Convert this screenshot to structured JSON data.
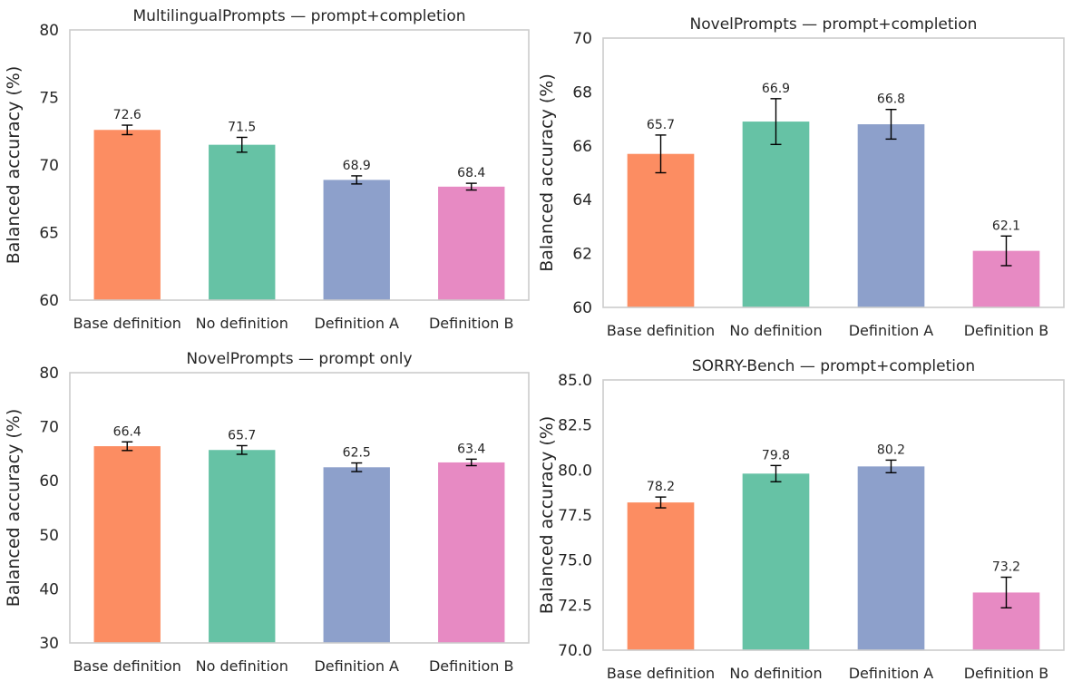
{
  "colors": {
    "Base definition": "#fc8d62",
    "No definition": "#66c2a5",
    "Definition A": "#8da0cb",
    "Definition B": "#e78ac3"
  },
  "chart_data": [
    {
      "type": "bar",
      "title": "MultilingualPrompts — prompt+completion",
      "ylabel": "Balanced accuracy (%)",
      "categories": [
        "Base definition",
        "No definition",
        "Definition A",
        "Definition B"
      ],
      "values": [
        72.6,
        71.5,
        68.9,
        68.4
      ],
      "errors": [
        0.35,
        0.55,
        0.3,
        0.25
      ],
      "value_labels": [
        "72.6",
        "71.5",
        "68.9",
        "68.4"
      ],
      "ylim": [
        60,
        80
      ],
      "yticks": [
        60,
        65,
        70,
        75,
        80
      ],
      "ytick_labels": [
        "60",
        "65",
        "70",
        "75",
        "80"
      ],
      "grid": false
    },
    {
      "type": "bar",
      "title": "NovelPrompts — prompt+completion",
      "ylabel": "Balanced accuracy (%)",
      "categories": [
        "Base definition",
        "No definition",
        "Definition A",
        "Definition B"
      ],
      "values": [
        65.7,
        66.9,
        66.8,
        62.1
      ],
      "errors": [
        0.7,
        0.85,
        0.55,
        0.55
      ],
      "value_labels": [
        "65.7",
        "66.9",
        "66.8",
        "62.1"
      ],
      "ylim": [
        60,
        70
      ],
      "yticks": [
        60,
        62,
        64,
        66,
        68,
        70
      ],
      "ytick_labels": [
        "60",
        "62",
        "64",
        "66",
        "68",
        "70"
      ],
      "grid": false
    },
    {
      "type": "bar",
      "title": "NovelPrompts — prompt only",
      "ylabel": "Balanced accuracy (%)",
      "categories": [
        "Base definition",
        "No definition",
        "Definition A",
        "Definition B"
      ],
      "values": [
        66.4,
        65.7,
        62.5,
        63.4
      ],
      "errors": [
        0.8,
        0.8,
        0.8,
        0.6
      ],
      "value_labels": [
        "66.4",
        "65.7",
        "62.5",
        "63.4"
      ],
      "ylim": [
        30,
        80
      ],
      "yticks": [
        30,
        40,
        50,
        60,
        70,
        80
      ],
      "ytick_labels": [
        "30",
        "40",
        "50",
        "60",
        "70",
        "80"
      ],
      "grid": false
    },
    {
      "type": "bar",
      "title": "SORRY-Bench — prompt+completion",
      "ylabel": "Balanced accuracy (%)",
      "categories": [
        "Base definition",
        "No definition",
        "Definition A",
        "Definition B"
      ],
      "values": [
        78.2,
        79.8,
        80.2,
        73.2
      ],
      "errors": [
        0.3,
        0.45,
        0.35,
        0.85
      ],
      "value_labels": [
        "78.2",
        "79.8",
        "80.2",
        "73.2"
      ],
      "ylim": [
        70,
        85
      ],
      "yticks": [
        70,
        72.5,
        75,
        77.5,
        80,
        82.5,
        85
      ],
      "ytick_labels": [
        "70.0",
        "72.5",
        "75.0",
        "77.5",
        "80.0",
        "82.5",
        "85.0"
      ],
      "grid": false
    }
  ]
}
